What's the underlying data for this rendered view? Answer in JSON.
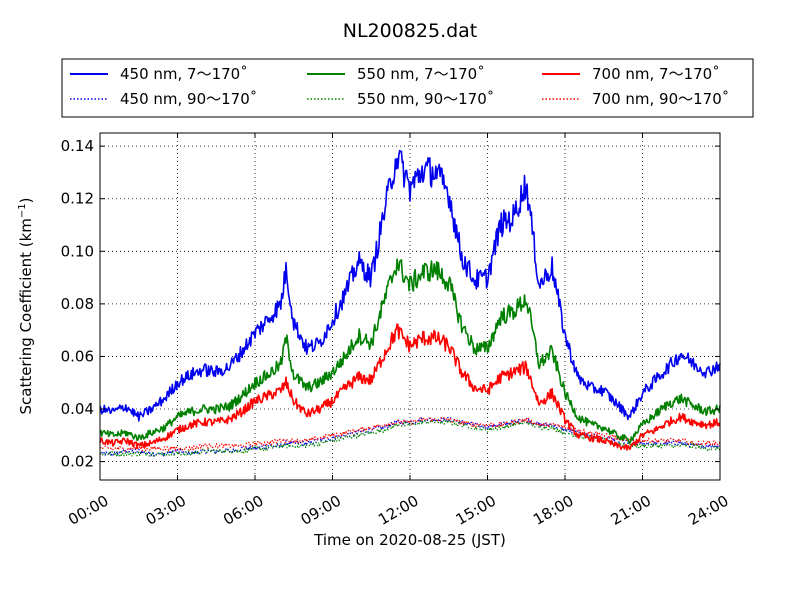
{
  "chart_data": {
    "type": "line",
    "title": "NL200825.dat",
    "xlabel": "Time on 2020-08-25 (JST)",
    "ylabel_main": "Scattering Coefficient (km",
    "ylabel_sup": "−1",
    "ylabel_close": ")",
    "x_unit": "hours since 00:00 JST",
    "xlim": [
      0,
      24
    ],
    "ylim": [
      0.013,
      0.145
    ],
    "x_ticks": [
      0,
      3,
      6,
      9,
      12,
      15,
      18,
      21,
      24
    ],
    "x_tick_labels": [
      "00:00",
      "03:00",
      "06:00",
      "09:00",
      "12:00",
      "15:00",
      "18:00",
      "21:00",
      "24:00"
    ],
    "y_ticks": [
      0.02,
      0.04,
      0.06,
      0.08,
      0.1,
      0.12,
      0.14
    ],
    "y_tick_labels": [
      "0.02",
      "0.04",
      "0.06",
      "0.08",
      "0.10",
      "0.12",
      "0.14"
    ],
    "grid": true,
    "legend_position": "top, above plot",
    "x": [
      0,
      0.5,
      1,
      1.5,
      2,
      2.5,
      3,
      3.5,
      4,
      4.5,
      5,
      5.5,
      6,
      6.5,
      7,
      7.2,
      7.5,
      8,
      8.5,
      9,
      9.5,
      10,
      10.5,
      11,
      11.5,
      12,
      12.5,
      13,
      13.5,
      14,
      14.5,
      15,
      15.5,
      16,
      16.5,
      17,
      17.5,
      18,
      18.5,
      19,
      19.5,
      20,
      20.5,
      21,
      21.5,
      22,
      22.5,
      23,
      23.5,
      24
    ],
    "series": [
      {
        "name": "450 nm, 7～170˚",
        "color": "#0000ee",
        "style": "solid",
        "values": [
          0.04,
          0.039,
          0.041,
          0.037,
          0.04,
          0.044,
          0.05,
          0.053,
          0.055,
          0.054,
          0.056,
          0.062,
          0.069,
          0.074,
          0.08,
          0.093,
          0.073,
          0.063,
          0.065,
          0.074,
          0.084,
          0.096,
          0.09,
          0.115,
          0.137,
          0.124,
          0.131,
          0.13,
          0.122,
          0.098,
          0.089,
          0.09,
          0.11,
          0.113,
          0.126,
          0.087,
          0.094,
          0.068,
          0.052,
          0.048,
          0.047,
          0.042,
          0.037,
          0.046,
          0.051,
          0.056,
          0.061,
          0.057,
          0.054,
          0.057
        ]
      },
      {
        "name": "450 nm, 90～170˚",
        "color": "#0000ee",
        "style": "dotted",
        "values": [
          0.023,
          0.023,
          0.024,
          0.024,
          0.023,
          0.023,
          0.024,
          0.023,
          0.024,
          0.024,
          0.024,
          0.025,
          0.025,
          0.026,
          0.026,
          0.027,
          0.027,
          0.027,
          0.028,
          0.029,
          0.03,
          0.031,
          0.032,
          0.033,
          0.035,
          0.035,
          0.036,
          0.036,
          0.036,
          0.035,
          0.034,
          0.033,
          0.034,
          0.035,
          0.036,
          0.034,
          0.034,
          0.032,
          0.031,
          0.03,
          0.029,
          0.028,
          0.027,
          0.027,
          0.027,
          0.027,
          0.027,
          0.026,
          0.026,
          0.026
        ]
      },
      {
        "name": "550 nm, 7～170˚",
        "color": "#008000",
        "style": "solid",
        "values": [
          0.031,
          0.03,
          0.031,
          0.029,
          0.031,
          0.033,
          0.037,
          0.039,
          0.04,
          0.04,
          0.041,
          0.045,
          0.05,
          0.053,
          0.057,
          0.067,
          0.053,
          0.048,
          0.05,
          0.054,
          0.06,
          0.068,
          0.065,
          0.081,
          0.096,
          0.087,
          0.092,
          0.093,
          0.088,
          0.072,
          0.063,
          0.063,
          0.075,
          0.077,
          0.082,
          0.057,
          0.062,
          0.046,
          0.037,
          0.034,
          0.033,
          0.03,
          0.028,
          0.034,
          0.038,
          0.042,
          0.044,
          0.041,
          0.039,
          0.04
        ]
      },
      {
        "name": "550 nm, 90～170˚",
        "color": "#008000",
        "style": "dotted",
        "values": [
          0.023,
          0.023,
          0.023,
          0.023,
          0.023,
          0.023,
          0.023,
          0.023,
          0.024,
          0.024,
          0.024,
          0.024,
          0.025,
          0.025,
          0.026,
          0.026,
          0.026,
          0.026,
          0.027,
          0.028,
          0.029,
          0.03,
          0.031,
          0.032,
          0.034,
          0.034,
          0.035,
          0.035,
          0.035,
          0.034,
          0.033,
          0.032,
          0.033,
          0.034,
          0.035,
          0.033,
          0.033,
          0.031,
          0.03,
          0.029,
          0.028,
          0.027,
          0.026,
          0.026,
          0.026,
          0.026,
          0.026,
          0.026,
          0.025,
          0.025
        ]
      },
      {
        "name": "700 nm, 7～170˚",
        "color": "#ff0000",
        "style": "solid",
        "values": [
          0.028,
          0.027,
          0.028,
          0.026,
          0.027,
          0.029,
          0.032,
          0.034,
          0.035,
          0.035,
          0.036,
          0.039,
          0.043,
          0.045,
          0.047,
          0.05,
          0.043,
          0.038,
          0.04,
          0.043,
          0.048,
          0.052,
          0.051,
          0.061,
          0.07,
          0.064,
          0.067,
          0.067,
          0.064,
          0.054,
          0.048,
          0.047,
          0.052,
          0.054,
          0.056,
          0.042,
          0.046,
          0.036,
          0.03,
          0.029,
          0.028,
          0.026,
          0.025,
          0.03,
          0.032,
          0.035,
          0.037,
          0.035,
          0.034,
          0.035
        ]
      },
      {
        "name": "700 nm, 90～170˚",
        "color": "#ff0000",
        "style": "dotted",
        "values": [
          0.025,
          0.025,
          0.025,
          0.025,
          0.025,
          0.025,
          0.025,
          0.025,
          0.026,
          0.026,
          0.026,
          0.026,
          0.027,
          0.027,
          0.028,
          0.028,
          0.028,
          0.028,
          0.029,
          0.03,
          0.031,
          0.032,
          0.033,
          0.034,
          0.035,
          0.035,
          0.036,
          0.036,
          0.036,
          0.035,
          0.034,
          0.034,
          0.034,
          0.035,
          0.036,
          0.034,
          0.034,
          0.033,
          0.032,
          0.031,
          0.03,
          0.029,
          0.028,
          0.028,
          0.028,
          0.028,
          0.028,
          0.027,
          0.027,
          0.027
        ]
      }
    ]
  }
}
